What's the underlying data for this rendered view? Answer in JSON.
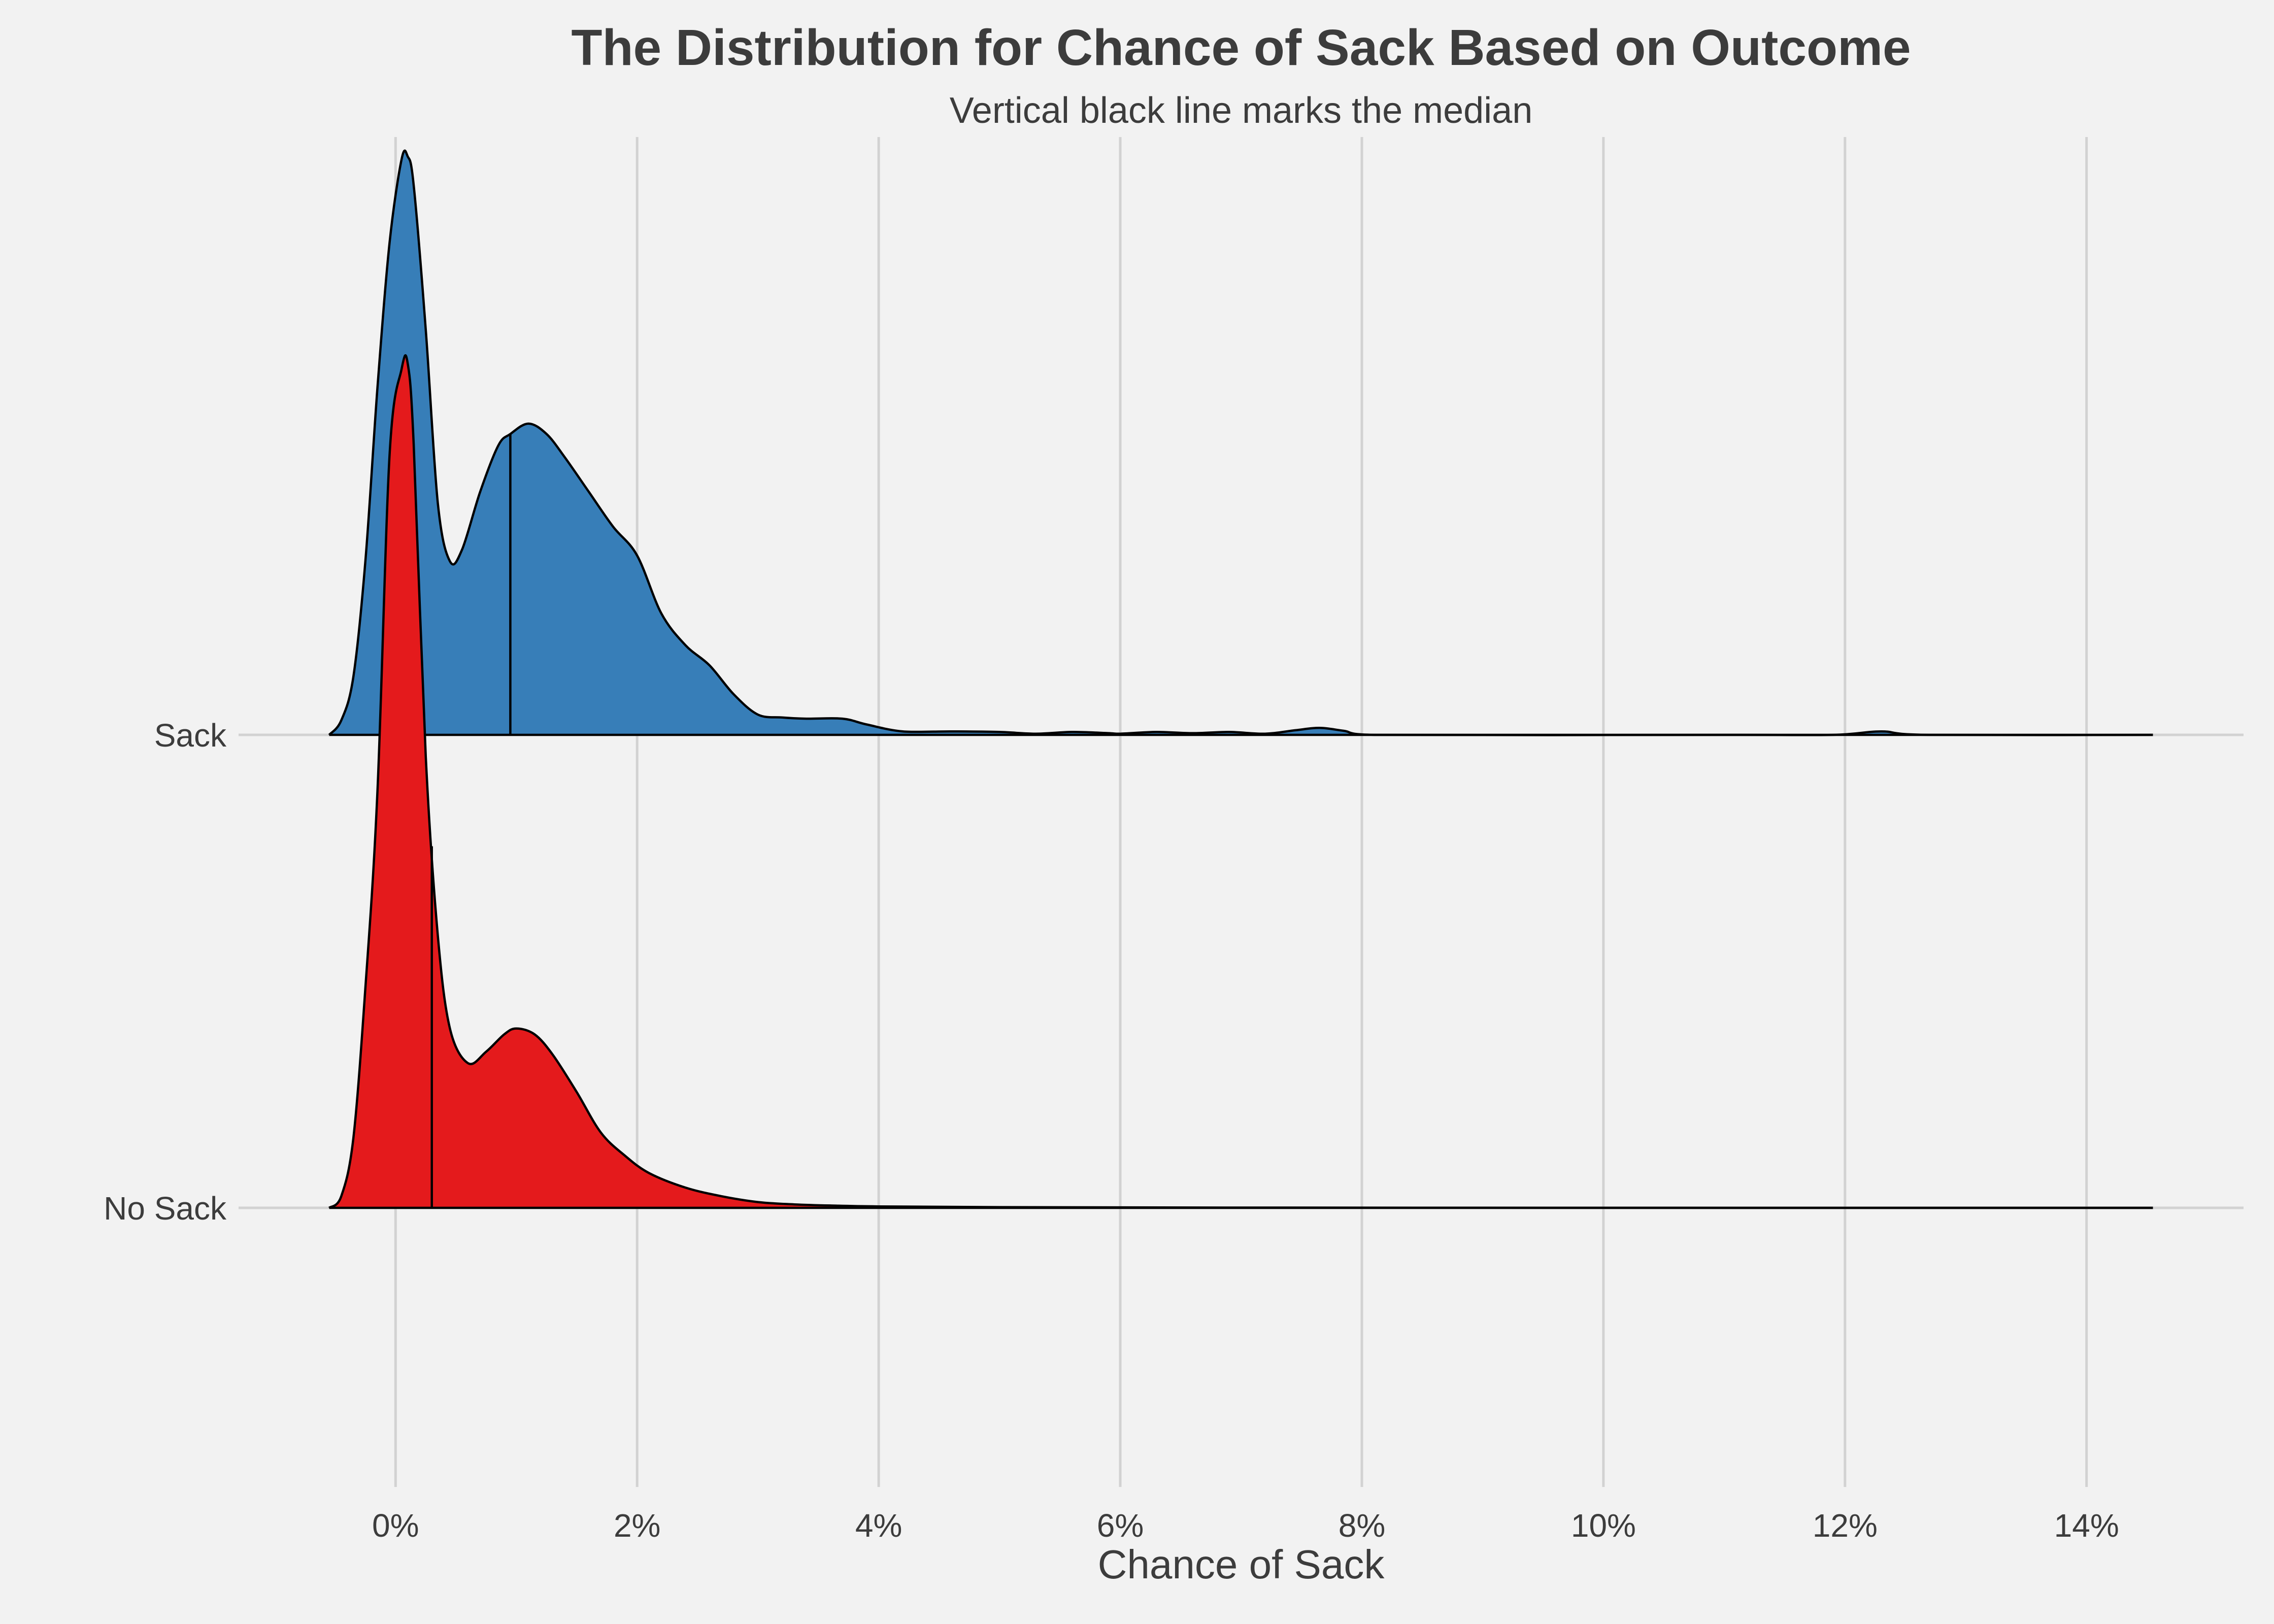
{
  "chart_data": {
    "type": "ridgeline",
    "title": "The Distribution for Chance of Sack Based on Outcome",
    "subtitle": "Vertical black line marks the median",
    "xlabel": "Chance of Sack",
    "ylabel": "",
    "xlim": [
      -1.3,
      15.3
    ],
    "x_ticks": [
      0,
      2,
      4,
      6,
      8,
      10,
      12,
      14
    ],
    "x_tick_labels": [
      "0%",
      "2%",
      "4%",
      "6%",
      "8%",
      "10%",
      "12%",
      "14%"
    ],
    "y_categories": [
      "Sack",
      "No Sack"
    ],
    "grid": true,
    "series": [
      {
        "name": "Sack",
        "color": "#377eb8",
        "median": 0.95,
        "points": [
          [
            -0.55,
            0.0
          ],
          [
            -0.45,
            0.025
          ],
          [
            -0.35,
            0.1
          ],
          [
            -0.25,
            0.3
          ],
          [
            -0.15,
            0.6
          ],
          [
            -0.05,
            0.85
          ],
          [
            0.05,
            0.995
          ],
          [
            0.1,
            1.0
          ],
          [
            0.15,
            0.95
          ],
          [
            0.25,
            0.7
          ],
          [
            0.35,
            0.4
          ],
          [
            0.45,
            0.3
          ],
          [
            0.55,
            0.32
          ],
          [
            0.7,
            0.42
          ],
          [
            0.85,
            0.5
          ],
          [
            0.95,
            0.52
          ],
          [
            1.1,
            0.538
          ],
          [
            1.25,
            0.52
          ],
          [
            1.4,
            0.48
          ],
          [
            1.6,
            0.42
          ],
          [
            1.8,
            0.36
          ],
          [
            2.0,
            0.31
          ],
          [
            2.2,
            0.21
          ],
          [
            2.4,
            0.155
          ],
          [
            2.6,
            0.12
          ],
          [
            2.8,
            0.07
          ],
          [
            3.0,
            0.035
          ],
          [
            3.2,
            0.03
          ],
          [
            3.4,
            0.028
          ],
          [
            3.7,
            0.028
          ],
          [
            3.9,
            0.018
          ],
          [
            4.2,
            0.006
          ],
          [
            4.6,
            0.006
          ],
          [
            5.0,
            0.005
          ],
          [
            5.3,
            0.002
          ],
          [
            5.6,
            0.005
          ],
          [
            5.9,
            0.003
          ],
          [
            6.0,
            0.002
          ],
          [
            6.3,
            0.005
          ],
          [
            6.6,
            0.003
          ],
          [
            6.9,
            0.005
          ],
          [
            7.2,
            0.002
          ],
          [
            7.45,
            0.008
          ],
          [
            7.65,
            0.012
          ],
          [
            7.85,
            0.007
          ],
          [
            8.1,
            0.0
          ],
          [
            11.0,
            0.0
          ],
          [
            11.9,
            0.0
          ],
          [
            12.3,
            0.006
          ],
          [
            12.7,
            0.0
          ],
          [
            14.55,
            0.0
          ]
        ]
      },
      {
        "name": "No Sack",
        "color": "#e41a1c",
        "median": 0.3,
        "points": [
          [
            -0.55,
            0.0
          ],
          [
            -0.45,
            0.02
          ],
          [
            -0.35,
            0.12
          ],
          [
            -0.25,
            0.38
          ],
          [
            -0.15,
            0.72
          ],
          [
            -0.05,
            1.3
          ],
          [
            0.05,
            1.45
          ],
          [
            0.1,
            1.46
          ],
          [
            0.15,
            1.32
          ],
          [
            0.25,
            0.78
          ],
          [
            0.35,
            0.47
          ],
          [
            0.45,
            0.31
          ],
          [
            0.6,
            0.25
          ],
          [
            0.75,
            0.27
          ],
          [
            0.9,
            0.3
          ],
          [
            1.0,
            0.31
          ],
          [
            1.15,
            0.3
          ],
          [
            1.3,
            0.265
          ],
          [
            1.5,
            0.2
          ],
          [
            1.7,
            0.13
          ],
          [
            1.9,
            0.09
          ],
          [
            2.1,
            0.06
          ],
          [
            2.4,
            0.035
          ],
          [
            2.7,
            0.02
          ],
          [
            3.0,
            0.01
          ],
          [
            3.3,
            0.006
          ],
          [
            3.6,
            0.004
          ],
          [
            4.0,
            0.0025
          ],
          [
            5.0,
            0.0012
          ],
          [
            7.0,
            0.0004
          ],
          [
            10.0,
            0.0001
          ],
          [
            14.55,
            0.0
          ]
        ]
      }
    ]
  }
}
